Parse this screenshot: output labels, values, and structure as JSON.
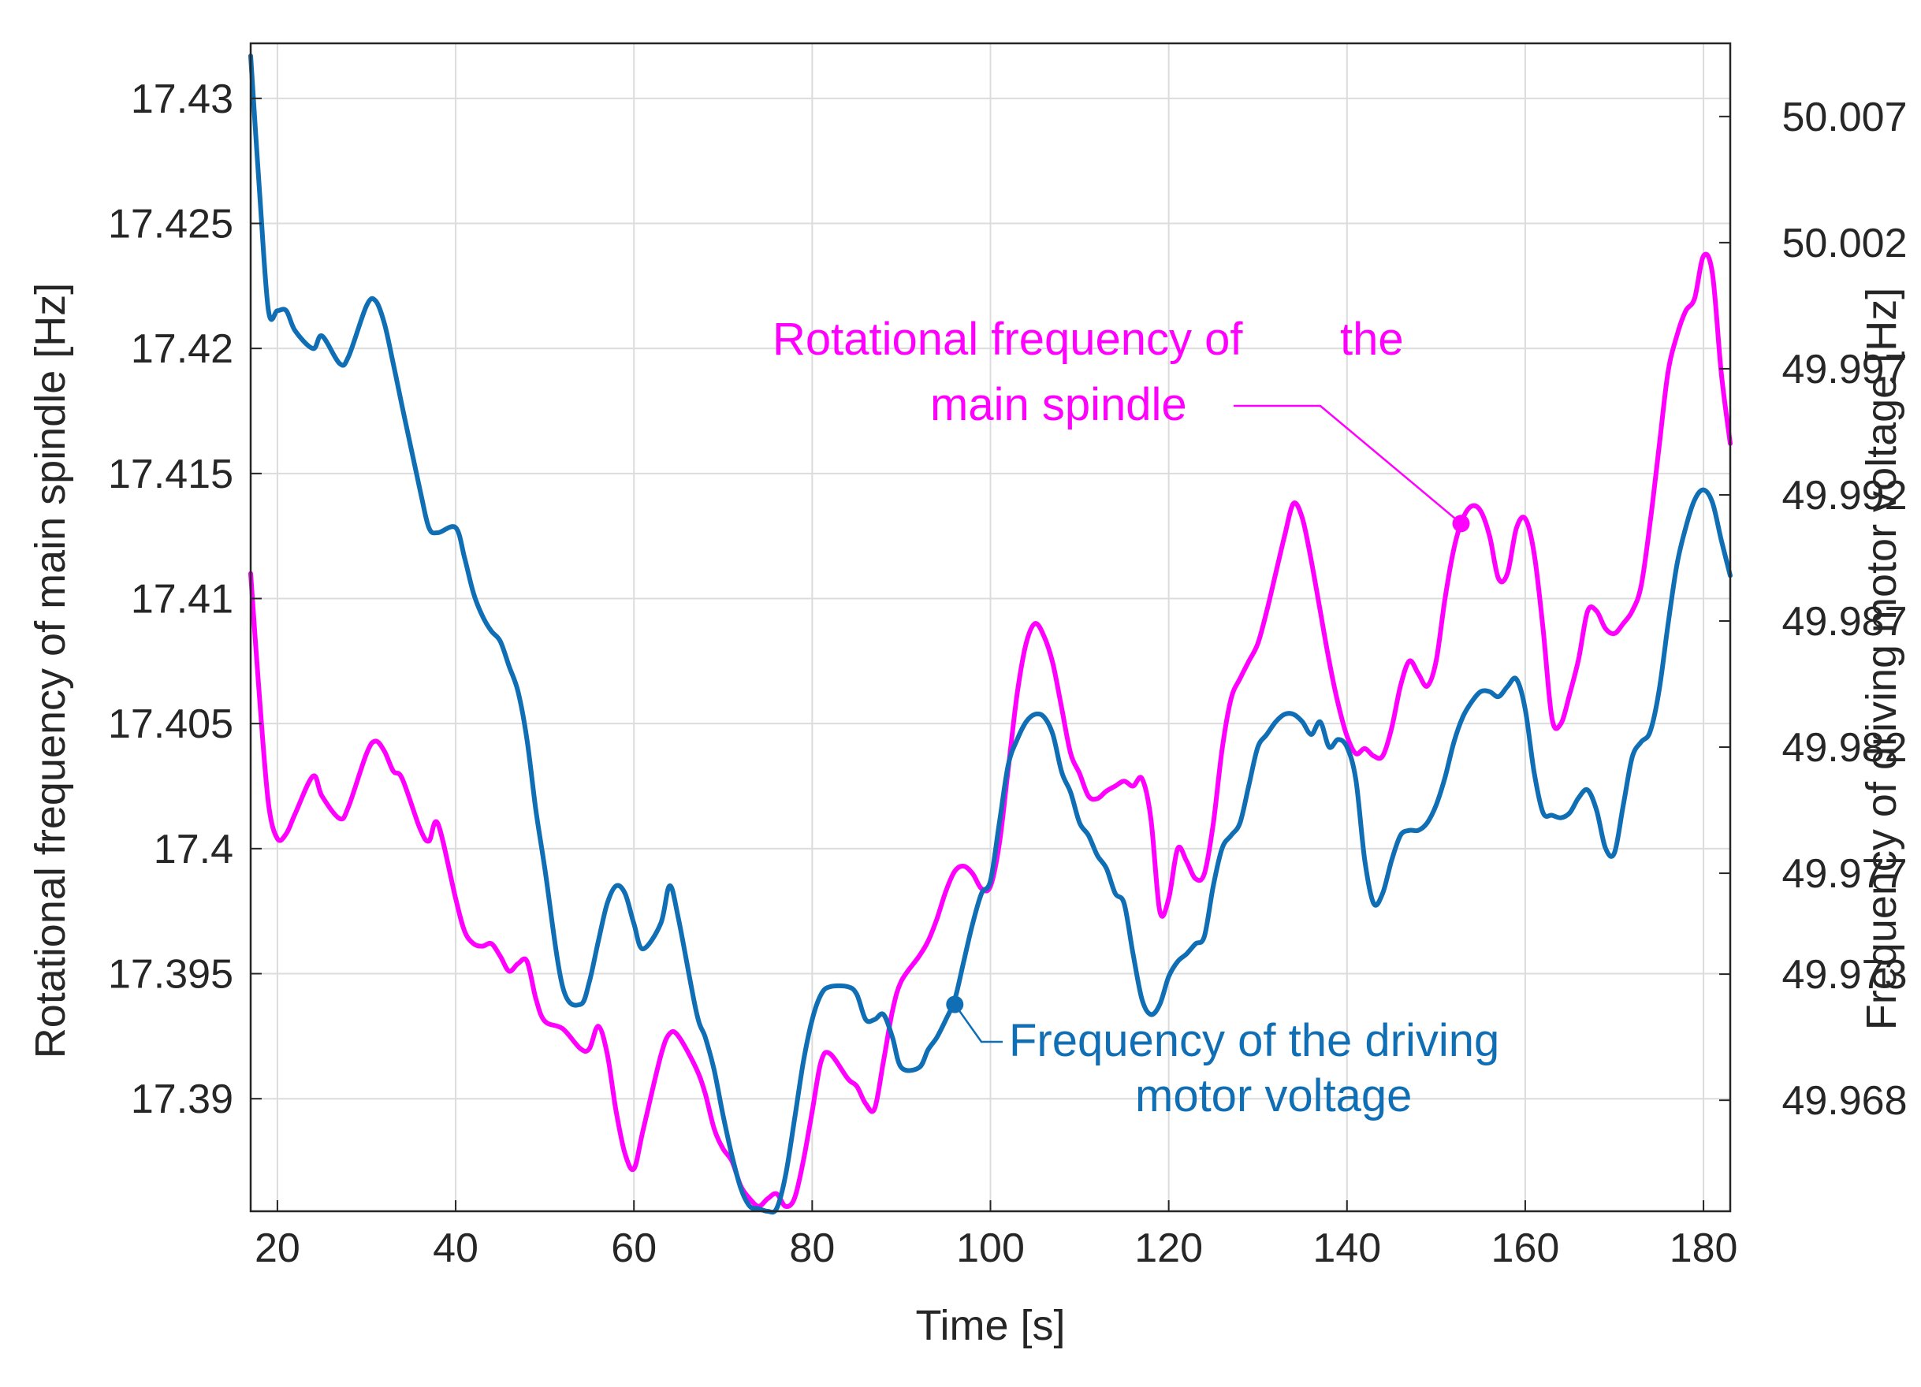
{
  "chart_data": {
    "type": "line",
    "title": "",
    "xlabel": "Time [s]",
    "ylabel_left": "Rotational frequency of main spindle [Hz]",
    "ylabel_right": "Frequency of driving motor  voltage [Hz]",
    "xlim": [
      17,
      183
    ],
    "ylim_left": [
      17.3855,
      17.4322
    ],
    "ylim_right": [
      49.9636,
      50.0099
    ],
    "grid": true,
    "x_ticks": [
      20,
      40,
      60,
      80,
      100,
      120,
      140,
      160,
      180
    ],
    "x_tick_labels": [
      "20",
      "40",
      "60",
      "80",
      "100",
      "120",
      "140",
      "160",
      "180"
    ],
    "y_left_ticks": [
      17.39,
      17.395,
      17.4,
      17.405,
      17.41,
      17.415,
      17.42,
      17.425,
      17.43
    ],
    "y_left_tick_labels": [
      "17.39",
      "17.395",
      "17.4",
      "17.405",
      "17.41",
      "17.415",
      "17.42",
      "17.425",
      "17.43"
    ],
    "y_right_ticks": [
      49.968,
      49.973,
      49.977,
      49.982,
      49.987,
      49.992,
      49.997,
      50.002,
      50.007
    ],
    "y_right_tick_labels": [
      "49.968",
      "49.973",
      "49.977",
      "49.982",
      "49.987",
      "49.992",
      "49.997",
      "50.002",
      "50.007"
    ],
    "series": [
      {
        "name": "Rotational frequency of the main spindle",
        "axis": "left",
        "color": "#ff00ff",
        "x": [
          17,
          18,
          19,
          20,
          21,
          22,
          24,
          25,
          27,
          28,
          30,
          31,
          32,
          33,
          34,
          36,
          37,
          38,
          40,
          41,
          42,
          43,
          44,
          45,
          46,
          47,
          48,
          49,
          50,
          52,
          54,
          55,
          56,
          57,
          58,
          59,
          60,
          61,
          63,
          64,
          65,
          67,
          68,
          69,
          70,
          71,
          72,
          73,
          74,
          75,
          76,
          77,
          78,
          79,
          80,
          81,
          82,
          84,
          85,
          86,
          87,
          88,
          89,
          90,
          92,
          93,
          94,
          95,
          96,
          97,
          98,
          99,
          100,
          101,
          102,
          103,
          104,
          105,
          106,
          107,
          108,
          109,
          110,
          111,
          112,
          113,
          114,
          115,
          116,
          117,
          118,
          119,
          120,
          121,
          122,
          123,
          124,
          125,
          126,
          127,
          128,
          129,
          130,
          131,
          132,
          133,
          134,
          135,
          136,
          137,
          138,
          139,
          140,
          141,
          142,
          143,
          144,
          145,
          146,
          147,
          148,
          149,
          150,
          151,
          152,
          153,
          154,
          155,
          156,
          157,
          158,
          159,
          160,
          161,
          162,
          163,
          164,
          165,
          166,
          167,
          168,
          169,
          170,
          171,
          172,
          173,
          174,
          175,
          176,
          177,
          178,
          179,
          180,
          181,
          182,
          183
        ],
        "values": [
          17.411,
          17.406,
          17.4018,
          17.4004,
          17.4006,
          17.4014,
          17.4029,
          17.4021,
          17.4012,
          17.4017,
          17.4038,
          17.4043,
          17.4039,
          17.4031,
          17.4028,
          17.4008,
          17.4003,
          17.401,
          17.398,
          17.3967,
          17.3962,
          17.3961,
          17.3962,
          17.3957,
          17.3951,
          17.3954,
          17.3955,
          17.394,
          17.3931,
          17.3928,
          17.392,
          17.392,
          17.3929,
          17.3918,
          17.3895,
          17.3878,
          17.3872,
          17.3887,
          17.3917,
          17.3926,
          17.3925,
          17.3912,
          17.3902,
          17.3888,
          17.388,
          17.3875,
          17.3865,
          17.386,
          17.3857,
          17.386,
          17.3862,
          17.3857,
          17.386,
          17.3875,
          17.3895,
          17.3915,
          17.3918,
          17.3908,
          17.3905,
          17.3898,
          17.3896,
          17.3915,
          17.3935,
          17.3947,
          17.3957,
          17.3963,
          17.3972,
          17.3983,
          17.3991,
          17.3993,
          17.399,
          17.3984,
          17.3985,
          17.4002,
          17.4032,
          17.4062,
          17.4082,
          17.409,
          17.4085,
          17.4074,
          17.4056,
          17.4038,
          17.403,
          17.4021,
          17.402,
          17.4023,
          17.4025,
          17.4027,
          17.4025,
          17.4028,
          17.4012,
          17.3975,
          17.398,
          17.4,
          17.3995,
          17.3988,
          17.399,
          17.401,
          17.404,
          17.406,
          17.4068,
          17.4075,
          17.4082,
          17.4095,
          17.411,
          17.4125,
          17.4138,
          17.4132,
          17.4115,
          17.4095,
          17.4075,
          17.4058,
          17.4045,
          17.4038,
          17.404,
          17.4037,
          17.4037,
          17.4048,
          17.4065,
          17.4075,
          17.407,
          17.4065,
          17.4075,
          17.41,
          17.412,
          17.4132,
          17.4137,
          17.4135,
          17.4125,
          17.4108,
          17.411,
          17.4128,
          17.4132,
          17.4118,
          17.4088,
          17.4052,
          17.405,
          17.4062,
          17.4076,
          17.4095,
          17.4095,
          17.4088,
          17.4086,
          17.409,
          17.4095,
          17.4105,
          17.413,
          17.416,
          17.419,
          17.4205,
          17.4215,
          17.422,
          17.4237,
          17.423,
          17.419,
          17.4162
        ]
      },
      {
        "name": "Frequency of the driving motor voltage",
        "axis": "right",
        "color": "#0f6eb4",
        "x": [
          17,
          18,
          19,
          20,
          21,
          22,
          24,
          25,
          27,
          28,
          30,
          31,
          32,
          33,
          34,
          36,
          37,
          38,
          40,
          41,
          42,
          43,
          44,
          45,
          46,
          47,
          48,
          49,
          50,
          52,
          54,
          55,
          56,
          57,
          58,
          59,
          60,
          61,
          63,
          64,
          65,
          67,
          68,
          69,
          70,
          71,
          72,
          73,
          74,
          75,
          76,
          77,
          78,
          79,
          80,
          81,
          82,
          84,
          85,
          86,
          87,
          88,
          89,
          90,
          92,
          93,
          94,
          95,
          96,
          97,
          98,
          99,
          100,
          101,
          102,
          103,
          104,
          105,
          106,
          107,
          108,
          109,
          110,
          111,
          112,
          113,
          114,
          115,
          116,
          117,
          118,
          119,
          120,
          121,
          122,
          123,
          124,
          125,
          126,
          127,
          128,
          129,
          130,
          131,
          132,
          133,
          134,
          135,
          136,
          137,
          138,
          139,
          140,
          141,
          142,
          143,
          144,
          145,
          146,
          147,
          148,
          149,
          150,
          151,
          152,
          153,
          154,
          155,
          156,
          157,
          158,
          159,
          160,
          161,
          162,
          163,
          164,
          165,
          166,
          167,
          168,
          169,
          170,
          171,
          172,
          173,
          174,
          175,
          176,
          177,
          178,
          179,
          180,
          181,
          182,
          183
        ],
        "values": [
          50.0094,
          50.004,
          49.9993,
          49.9993,
          49.9993,
          49.9985,
          49.9978,
          49.9983,
          49.9972,
          49.9975,
          49.9995,
          49.9997,
          49.9988,
          49.9972,
          49.9955,
          49.9922,
          49.9907,
          49.9905,
          49.9907,
          49.9895,
          49.9881,
          49.9872,
          49.9866,
          49.9862,
          49.9852,
          49.9842,
          49.9823,
          49.9795,
          49.9772,
          49.9725,
          49.9718,
          49.9727,
          49.9743,
          49.9758,
          49.9765,
          49.9762,
          49.975,
          49.974,
          49.975,
          49.9765,
          49.9752,
          49.9715,
          49.9705,
          49.9692,
          49.9674,
          49.9658,
          49.9645,
          49.9638,
          49.9637,
          49.9636,
          49.9637,
          49.965,
          49.9672,
          49.9695,
          49.9712,
          49.9722,
          49.9725,
          49.9725,
          49.9722,
          49.9712,
          49.9712,
          49.9714,
          49.9705,
          49.9693,
          49.9693,
          49.97,
          49.9705,
          49.9712,
          49.972,
          49.9735,
          49.975,
          49.9762,
          49.9767,
          49.979,
          49.9813,
          49.9823,
          49.983,
          49.9833,
          49.9832,
          49.9825,
          49.981,
          49.9802,
          49.979,
          49.9785,
          49.9777,
          49.9772,
          49.9762,
          49.9758,
          49.9738,
          49.972,
          49.9714,
          49.9718,
          49.9729,
          49.9735,
          49.9738,
          49.9742,
          49.9745,
          49.9765,
          49.978,
          49.9785,
          49.979,
          49.9805,
          49.982,
          49.9825,
          49.983,
          49.9833,
          49.9833,
          49.983,
          49.9825,
          49.983,
          49.982,
          49.9823,
          49.982,
          49.9807,
          49.9775,
          49.9758,
          49.9762,
          49.9775,
          49.9785,
          49.9787,
          49.9787,
          49.979,
          49.9797,
          49.9808,
          49.9822,
          49.9832,
          49.9838,
          49.9842,
          49.9842,
          49.984,
          49.9844,
          49.9847,
          49.9835,
          49.981,
          49.9794,
          49.9793,
          49.9792,
          49.9794,
          49.98,
          49.9803,
          49.9795,
          49.978,
          49.9778,
          49.9797,
          49.9816,
          49.9822,
          49.9826,
          49.9842,
          49.9868,
          49.9892,
          49.9907,
          49.9918,
          49.9922,
          49.9917,
          49.9902,
          49.9888
        ]
      }
    ],
    "annotations": [
      {
        "name": "spindle-annotation",
        "text": [
          "Rotational frequency of",
          "the",
          "main spindle"
        ],
        "color": "#ff00ff",
        "points_to": {
          "x": 152.8,
          "y": 17.413,
          "axis": "left"
        }
      },
      {
        "name": "motor-annotation",
        "text": [
          "Frequency of the driving",
          "motor voltage"
        ],
        "color": "#0f6eb4",
        "points_to": {
          "x": 96,
          "y": 49.9718,
          "axis": "right"
        }
      }
    ]
  }
}
